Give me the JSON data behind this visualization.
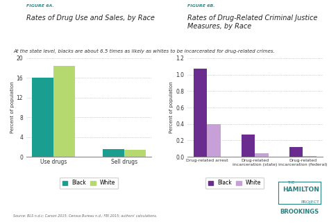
{
  "fig6a_title_label": "FIGURE 6A.",
  "fig6a_title": "Rates of Drug Use and Sales, by Race",
  "fig6b_title_label": "FIGURE 6B.",
  "fig6b_title": "Rates of Drug-Related Criminal Justice\nMeasures, by Race",
  "subtitle": "At the state level, blacks are about 6.5 times as likely as whites to be incarcerated for drug-related crimes.",
  "fig6a_categories": [
    "Use drugs",
    "Sell drugs"
  ],
  "fig6a_black": [
    16.0,
    1.5
  ],
  "fig6a_white": [
    18.5,
    1.4
  ],
  "fig6a_ylim": [
    0,
    20
  ],
  "fig6a_yticks": [
    0,
    4,
    8,
    12,
    16,
    20
  ],
  "fig6a_color_black": "#1a9e8f",
  "fig6a_color_white": "#b5d96e",
  "fig6b_categories": [
    "Drug-related arrest",
    "Drug-related\nincarceration (state)",
    "Drug-related\nincarceration (federal)"
  ],
  "fig6b_black": [
    1.07,
    0.27,
    0.12
  ],
  "fig6b_white": [
    0.4,
    0.04,
    0.01
  ],
  "fig6b_ylim": [
    0,
    1.2
  ],
  "fig6b_yticks": [
    0.0,
    0.2,
    0.4,
    0.6,
    0.8,
    1.0,
    1.2
  ],
  "fig6b_color_black": "#6a2d8f",
  "fig6b_color_white": "#c8a0d8",
  "ylabel": "Percent of population",
  "source_text": "Source: BLS n.d.c; Carson 2015; Census Bureau n.d.; FBI 2015; authors' calculations.",
  "background_color": "#ffffff",
  "grid_color": "#aaaaaa",
  "teal_color": "#2a8a8a",
  "brookings_teal": "#2a8080"
}
